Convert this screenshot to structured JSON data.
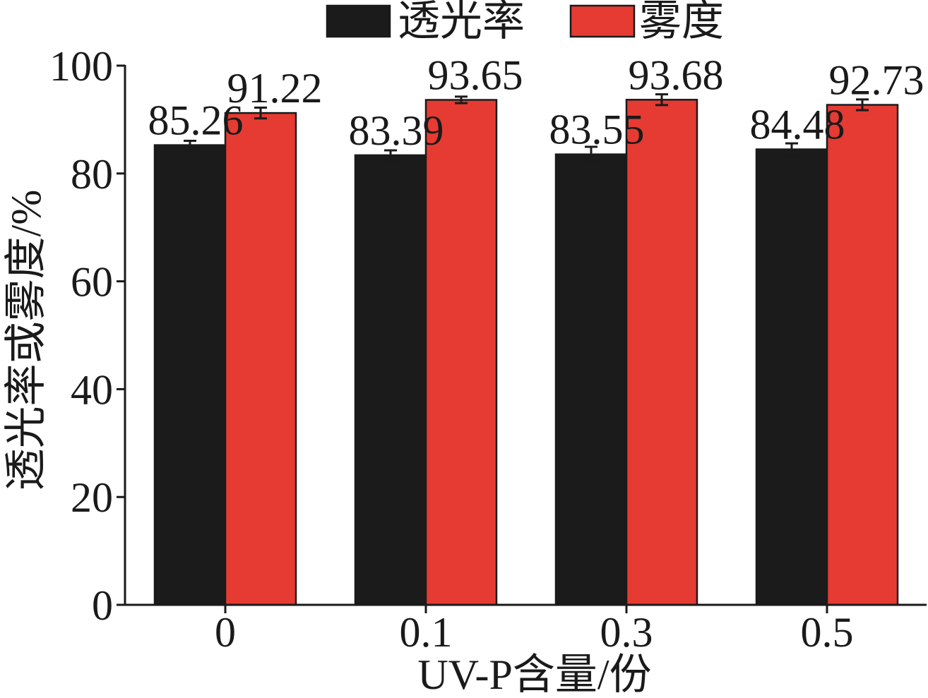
{
  "chart_data": {
    "type": "bar",
    "categories": [
      "0",
      "0.1",
      "0.3",
      "0.5"
    ],
    "series": [
      {
        "name": "透光率",
        "values": [
          85.26,
          83.39,
          83.55,
          84.48
        ],
        "errors": [
          0.8,
          0.9,
          1.4,
          1.1
        ],
        "color": "#1b1b1b"
      },
      {
        "name": "雾度",
        "values": [
          91.22,
          93.65,
          93.68,
          92.73
        ],
        "errors": [
          1.0,
          0.6,
          1.0,
          1.0
        ],
        "color": "#e53b32"
      }
    ],
    "xlabel": "UV-P含量/份",
    "ylabel": "透光率或雾度/%",
    "ylim": [
      0,
      100
    ],
    "yticks": [
      0,
      20,
      40,
      60,
      80,
      100
    ],
    "legend_position": "top-center",
    "grid": false
  }
}
